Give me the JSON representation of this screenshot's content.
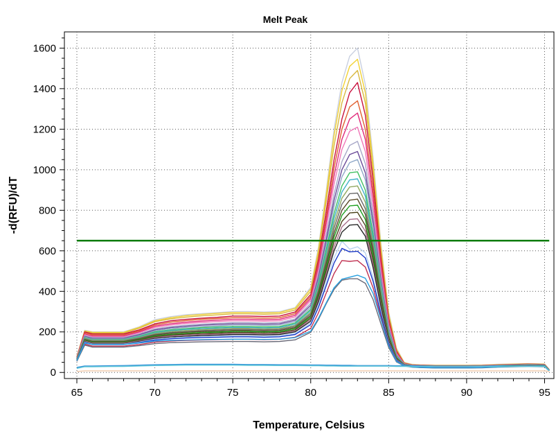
{
  "chart_data": {
    "type": "line",
    "title": "Melt Peak",
    "xlabel": "Temperature, Celsius",
    "ylabel": "-d(RFU)/dT",
    "xlim": [
      64.2,
      95.6
    ],
    "ylim": [
      -30,
      1680
    ],
    "x_ticks": [
      65,
      70,
      75,
      80,
      85,
      90,
      95
    ],
    "y_ticks": [
      0,
      200,
      400,
      600,
      800,
      1000,
      1200,
      1400,
      1600
    ],
    "grid": true,
    "legend": "none",
    "threshold": {
      "value": 650,
      "color": "#0a7a0a",
      "x_start": 65,
      "x_end": 95.3
    },
    "x": [
      65,
      65.5,
      66,
      67,
      68,
      69,
      70,
      71,
      72,
      73,
      74,
      75,
      76,
      77,
      78,
      79,
      80,
      80.5,
      81,
      81.5,
      82,
      82.5,
      83,
      83.5,
      84,
      84.5,
      85,
      85.5,
      86,
      86.5,
      87,
      88,
      89,
      90,
      91,
      92,
      93,
      94,
      95,
      95.3
    ],
    "series": [
      {
        "color": "#c8cfe0",
        "values": [
          80,
          208,
          200,
          200,
          200,
          225,
          260,
          275,
          285,
          290,
          295,
          300,
          300,
          298,
          300,
          320,
          420,
          620,
          900,
          1200,
          1430,
          1560,
          1600,
          1420,
          1060,
          640,
          300,
          120,
          50,
          40,
          38,
          36,
          36,
          36,
          37,
          40,
          42,
          44,
          42,
          15
        ]
      },
      {
        "color": "#f2d234",
        "values": [
          78,
          205,
          198,
          198,
          198,
          222,
          255,
          270,
          280,
          286,
          291,
          296,
          296,
          294,
          296,
          316,
          412,
          605,
          880,
          1170,
          1390,
          1510,
          1545,
          1380,
          1030,
          620,
          290,
          115,
          48,
          39,
          37,
          35,
          35,
          35,
          36,
          39,
          41,
          43,
          41,
          14
        ]
      },
      {
        "color": "#d8b840",
        "values": [
          76,
          200,
          194,
          194,
          194,
          218,
          250,
          264,
          273,
          279,
          284,
          289,
          289,
          287,
          289,
          308,
          400,
          585,
          850,
          1120,
          1330,
          1450,
          1490,
          1330,
          990,
          595,
          280,
          110,
          46,
          38,
          36,
          34,
          34,
          34,
          35,
          38,
          40,
          42,
          40,
          14
        ]
      },
      {
        "color": "#c8103c",
        "values": [
          75,
          200,
          190,
          190,
          190,
          210,
          240,
          255,
          262,
          268,
          272,
          278,
          278,
          276,
          278,
          298,
          385,
          560,
          800,
          1050,
          1250,
          1380,
          1430,
          1270,
          950,
          570,
          265,
          105,
          45,
          37,
          35,
          33,
          33,
          33,
          34,
          37,
          39,
          41,
          39,
          13
        ]
      },
      {
        "color": "#e06030",
        "values": [
          74,
          195,
          185,
          185,
          185,
          205,
          234,
          248,
          256,
          262,
          266,
          270,
          270,
          268,
          270,
          290,
          375,
          540,
          770,
          1010,
          1200,
          1310,
          1340,
          1200,
          900,
          545,
          255,
          100,
          44,
          36,
          34,
          32,
          32,
          32,
          33,
          36,
          38,
          40,
          38,
          13
        ]
      },
      {
        "color": "#e02878",
        "values": [
          72,
          190,
          180,
          180,
          180,
          200,
          228,
          240,
          248,
          254,
          258,
          262,
          262,
          260,
          262,
          282,
          365,
          525,
          745,
          970,
          1150,
          1250,
          1280,
          1150,
          865,
          525,
          245,
          96,
          43,
          36,
          34,
          32,
          32,
          32,
          33,
          36,
          38,
          40,
          38,
          12
        ]
      },
      {
        "color": "#f078b8",
        "values": [
          70,
          186,
          176,
          176,
          176,
          196,
          222,
          234,
          242,
          247,
          251,
          255,
          255,
          253,
          255,
          274,
          355,
          505,
          715,
          930,
          1100,
          1190,
          1210,
          1090,
          820,
          500,
          235,
          92,
          42,
          35,
          33,
          31,
          31,
          31,
          32,
          35,
          37,
          39,
          37,
          12
        ]
      },
      {
        "color": "#a8a8c8",
        "values": [
          70,
          182,
          172,
          172,
          172,
          190,
          215,
          226,
          233,
          238,
          242,
          246,
          246,
          244,
          246,
          264,
          342,
          485,
          680,
          880,
          1040,
          1120,
          1140,
          1030,
          780,
          478,
          225,
          88,
          41,
          35,
          33,
          31,
          31,
          31,
          32,
          35,
          37,
          39,
          37,
          12
        ]
      },
      {
        "color": "#6a4a98",
        "values": [
          68,
          178,
          168,
          168,
          168,
          186,
          210,
          221,
          228,
          233,
          237,
          240,
          240,
          238,
          240,
          258,
          332,
          470,
          655,
          850,
          1000,
          1075,
          1090,
          985,
          745,
          458,
          215,
          85,
          40,
          34,
          32,
          30,
          30,
          30,
          31,
          34,
          36,
          38,
          36,
          11
        ]
      },
      {
        "color": "#8fa8c8",
        "values": [
          68,
          175,
          165,
          165,
          165,
          182,
          205,
          216,
          222,
          227,
          230,
          234,
          234,
          232,
          234,
          251,
          322,
          455,
          635,
          820,
          965,
          1035,
          1050,
          950,
          720,
          442,
          208,
          82,
          40,
          34,
          32,
          30,
          30,
          30,
          31,
          34,
          36,
          38,
          36,
          11
        ]
      },
      {
        "color": "#40c060",
        "values": [
          66,
          172,
          162,
          162,
          162,
          178,
          200,
          210,
          216,
          221,
          224,
          227,
          227,
          225,
          227,
          244,
          312,
          440,
          610,
          785,
          920,
          985,
          990,
          900,
          685,
          422,
          200,
          79,
          39,
          33,
          31,
          29,
          29,
          29,
          30,
          33,
          35,
          37,
          35,
          11
        ]
      },
      {
        "color": "#40b0c8",
        "values": [
          66,
          170,
          160,
          160,
          160,
          175,
          196,
          206,
          212,
          216,
          219,
          222,
          222,
          220,
          222,
          238,
          305,
          428,
          590,
          760,
          890,
          950,
          955,
          870,
          662,
          408,
          194,
          77,
          39,
          33,
          31,
          29,
          29,
          29,
          30,
          33,
          35,
          37,
          35,
          11
        ]
      },
      {
        "color": "#90a860",
        "values": [
          65,
          168,
          158,
          158,
          158,
          172,
          192,
          202,
          207,
          211,
          214,
          217,
          217,
          215,
          217,
          232,
          297,
          415,
          572,
          735,
          860,
          915,
          920,
          840,
          640,
          396,
          188,
          75,
          38,
          32,
          30,
          28,
          28,
          28,
          29,
          32,
          34,
          36,
          34,
          10
        ]
      },
      {
        "color": "#6a6a6a",
        "values": [
          64,
          165,
          155,
          155,
          155,
          169,
          188,
          197,
          202,
          206,
          209,
          212,
          212,
          210,
          212,
          227,
          290,
          404,
          555,
          712,
          830,
          882,
          885,
          808,
          618,
          383,
          182,
          73,
          38,
          32,
          30,
          28,
          28,
          28,
          29,
          32,
          34,
          36,
          34,
          10
        ]
      },
      {
        "color": "#5a4a28",
        "values": [
          64,
          162,
          152,
          152,
          152,
          165,
          184,
          193,
          198,
          202,
          204,
          207,
          207,
          205,
          207,
          221,
          282,
          392,
          537,
          688,
          800,
          850,
          855,
          780,
          597,
          370,
          176,
          71,
          37,
          31,
          29,
          27,
          27,
          27,
          28,
          31,
          33,
          35,
          33,
          10
        ]
      },
      {
        "color": "#20a020",
        "values": [
          63,
          160,
          150,
          150,
          150,
          162,
          180,
          188,
          193,
          197,
          199,
          202,
          202,
          200,
          202,
          216,
          275,
          382,
          522,
          668,
          775,
          822,
          825,
          755,
          578,
          359,
          171,
          69,
          37,
          31,
          29,
          27,
          27,
          27,
          28,
          31,
          33,
          35,
          33,
          10
        ]
      },
      {
        "color": "#4a4018",
        "values": [
          62,
          157,
          147,
          147,
          147,
          159,
          176,
          184,
          189,
          192,
          194,
          197,
          197,
          195,
          197,
          210,
          268,
          372,
          505,
          645,
          745,
          787,
          790,
          725,
          556,
          347,
          166,
          67,
          36,
          30,
          28,
          26,
          26,
          26,
          27,
          30,
          32,
          34,
          32,
          9
        ]
      },
      {
        "color": "#a8708a",
        "values": [
          62,
          155,
          145,
          145,
          145,
          156,
          172,
          180,
          184,
          187,
          189,
          192,
          192,
          190,
          192,
          205,
          260,
          360,
          488,
          620,
          718,
          755,
          758,
          697,
          535,
          335,
          161,
          65,
          36,
          30,
          28,
          26,
          26,
          26,
          27,
          30,
          32,
          34,
          32,
          9
        ]
      },
      {
        "color": "#2a2a2a",
        "values": [
          61,
          152,
          142,
          142,
          142,
          153,
          168,
          175,
          179,
          182,
          184,
          187,
          187,
          185,
          187,
          200,
          253,
          350,
          473,
          600,
          692,
          727,
          730,
          672,
          517,
          325,
          156,
          63,
          35,
          29,
          27,
          25,
          25,
          25,
          26,
          29,
          31,
          33,
          31,
          9
        ]
      },
      {
        "color": "#b8d4f0",
        "values": [
          60,
          150,
          140,
          140,
          140,
          150,
          164,
          170,
          174,
          177,
          179,
          181,
          181,
          179,
          181,
          193,
          244,
          334,
          448,
          565,
          648,
          608,
          620,
          590,
          470,
          300,
          148,
          61,
          35,
          29,
          27,
          25,
          25,
          25,
          26,
          29,
          31,
          33,
          31,
          9
        ]
      },
      {
        "color": "#1a38c8",
        "values": [
          58,
          148,
          138,
          138,
          138,
          147,
          160,
          166,
          170,
          172,
          174,
          176,
          176,
          174,
          176,
          187,
          236,
          322,
          430,
          540,
          612,
          595,
          598,
          565,
          450,
          290,
          143,
          59,
          34,
          28,
          26,
          24,
          24,
          24,
          25,
          28,
          30,
          32,
          30,
          8
        ]
      },
      {
        "color": "#c03050",
        "values": [
          56,
          140,
          130,
          130,
          130,
          138,
          150,
          155,
          158,
          160,
          162,
          164,
          164,
          162,
          164,
          174,
          218,
          295,
          393,
          488,
          552,
          548,
          552,
          520,
          418,
          272,
          136,
          56,
          33,
          27,
          25,
          23,
          23,
          23,
          24,
          27,
          29,
          31,
          29,
          8
        ]
      },
      {
        "color": "#6a6a78",
        "values": [
          55,
          135,
          125,
          125,
          125,
          132,
          142,
          147,
          149,
          151,
          152,
          153,
          153,
          151,
          153,
          161,
          198,
          262,
          340,
          410,
          455,
          462,
          462,
          440,
          360,
          240,
          124,
          52,
          32,
          26,
          24,
          22,
          22,
          22,
          23,
          26,
          28,
          30,
          28,
          8
        ]
      },
      {
        "color": "#28a0e0",
        "values": [
          58,
          145,
          138,
          138,
          138,
          145,
          155,
          158,
          160,
          162,
          163,
          164,
          164,
          163,
          164,
          172,
          204,
          268,
          345,
          418,
          460,
          470,
          480,
          465,
          390,
          262,
          132,
          55,
          33,
          27,
          25,
          23,
          23,
          23,
          24,
          27,
          29,
          31,
          29,
          8
        ]
      },
      {
        "color": "#3090d8",
        "values": [
          25,
          32,
          32,
          33,
          34,
          36,
          38,
          39,
          40,
          40,
          40,
          40,
          39,
          39,
          38,
          38,
          37,
          37,
          36,
          36,
          35,
          35,
          34,
          34,
          34,
          34,
          34,
          33,
          33,
          33,
          33,
          32,
          32,
          32,
          32,
          32,
          32,
          32,
          32,
          10
        ]
      },
      {
        "color": "#60c8d8",
        "values": [
          20,
          28,
          28,
          29,
          30,
          32,
          34,
          35,
          36,
          36,
          36,
          36,
          35,
          35,
          34,
          34,
          33,
          33,
          32,
          32,
          31,
          31,
          31,
          31,
          31,
          31,
          31,
          30,
          30,
          30,
          30,
          30,
          30,
          30,
          30,
          30,
          30,
          30,
          30,
          9
        ]
      },
      {
        "color": "#f0c8a8",
        "values": [
          5,
          8,
          8,
          8,
          8,
          8,
          8,
          8,
          8,
          8,
          8,
          8,
          8,
          8,
          8,
          8,
          8,
          8,
          8,
          8,
          8,
          8,
          8,
          8,
          8,
          8,
          8,
          8,
          8,
          8,
          8,
          8,
          8,
          8,
          8,
          8,
          8,
          8,
          8,
          5
        ]
      }
    ]
  }
}
